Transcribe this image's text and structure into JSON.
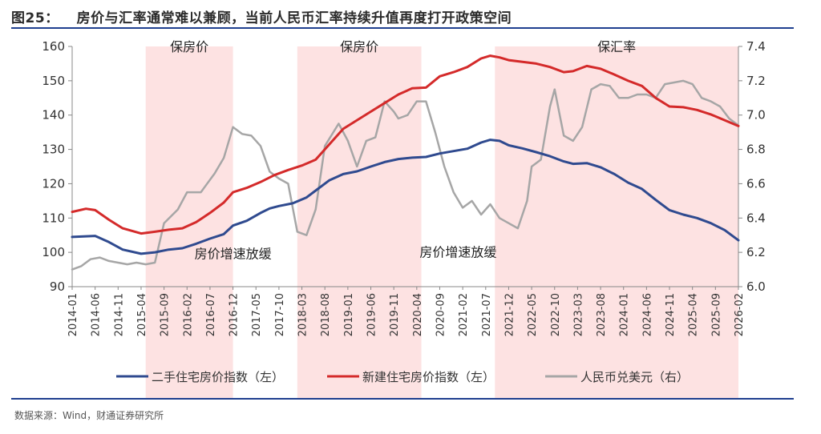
{
  "figure_label": "图25：",
  "title": "房价与汇率通常难以兼顾，当前人民币汇率持续升值再度打开政策空间",
  "source": "数据来源：Wind，财通证券研究所",
  "colors": {
    "secondhand": "#2f4a8f",
    "newhome": "#d42a2a",
    "fx": "#a6a6a6",
    "shade": "#fde2e2"
  },
  "chart_data": {
    "type": "line",
    "x_range": [
      "2014-01",
      "2026-02"
    ],
    "x_ticks": [
      "2014-01",
      "2014-06",
      "2014-11",
      "2015-04",
      "2015-09",
      "2016-02",
      "2016-07",
      "2016-12",
      "2017-05",
      "2017-10",
      "2018-03",
      "2018-08",
      "2019-01",
      "2019-06",
      "2019-11",
      "2020-04",
      "2020-09",
      "2021-02",
      "2021-07",
      "2021-12",
      "2022-05",
      "2022-10",
      "2023-03",
      "2023-08",
      "2024-01",
      "2024-06",
      "2024-11",
      "2025-04",
      "2025-09",
      "2026-02"
    ],
    "y_left": {
      "min": 90,
      "max": 160,
      "ticks": [
        90,
        100,
        110,
        120,
        130,
        140,
        150,
        160
      ]
    },
    "y_right": {
      "min": 6.0,
      "max": 7.4,
      "ticks": [
        "6.0",
        "6.2",
        "6.4",
        "6.6",
        "6.8",
        "7.0",
        "7.2",
        "7.4"
      ]
    },
    "shaded_periods": [
      {
        "start": "2015-05",
        "end": "2016-12",
        "label": "保房价",
        "label_pos": "top"
      },
      {
        "start": "2018-02",
        "end": "2020-05",
        "label": "保房价",
        "label_pos": "top"
      },
      {
        "start": "2021-09",
        "end": "2026-02",
        "label": "保汇率",
        "label_pos": "top"
      }
    ],
    "annotations": [
      {
        "text": "房价增速放缓",
        "at": "2016-12",
        "y_left": 102
      },
      {
        "text": "房价增速放缓",
        "at": "2021-01",
        "y_left": 102.5
      }
    ],
    "series": [
      {
        "name": "二手住宅房价指数（左）",
        "axis": "left",
        "color_key": "secondhand",
        "points": [
          [
            "2014-01",
            104.5
          ],
          [
            "2014-06",
            104.8
          ],
          [
            "2014-09",
            103.0
          ],
          [
            "2014-12",
            100.8
          ],
          [
            "2015-04",
            99.6
          ],
          [
            "2015-07",
            100.0
          ],
          [
            "2015-10",
            100.8
          ],
          [
            "2016-01",
            101.2
          ],
          [
            "2016-04",
            102.5
          ],
          [
            "2016-07",
            104.0
          ],
          [
            "2016-10",
            105.3
          ],
          [
            "2016-12",
            107.8
          ],
          [
            "2017-03",
            109.2
          ],
          [
            "2017-06",
            111.5
          ],
          [
            "2017-08",
            112.8
          ],
          [
            "2017-10",
            113.5
          ],
          [
            "2018-01",
            114.3
          ],
          [
            "2018-04",
            116.0
          ],
          [
            "2018-06",
            118.0
          ],
          [
            "2018-09",
            121.0
          ],
          [
            "2018-12",
            122.8
          ],
          [
            "2019-03",
            123.6
          ],
          [
            "2019-06",
            125.0
          ],
          [
            "2019-09",
            126.3
          ],
          [
            "2019-12",
            127.2
          ],
          [
            "2020-03",
            127.6
          ],
          [
            "2020-06",
            127.8
          ],
          [
            "2020-09",
            128.8
          ],
          [
            "2020-12",
            129.5
          ],
          [
            "2021-03",
            130.2
          ],
          [
            "2021-06",
            132.0
          ],
          [
            "2021-08",
            132.8
          ],
          [
            "2021-10",
            132.5
          ],
          [
            "2021-12",
            131.2
          ],
          [
            "2022-03",
            130.3
          ],
          [
            "2022-06",
            129.2
          ],
          [
            "2022-09",
            128.0
          ],
          [
            "2022-12",
            126.5
          ],
          [
            "2023-02",
            125.8
          ],
          [
            "2023-05",
            126.0
          ],
          [
            "2023-08",
            124.8
          ],
          [
            "2023-11",
            122.8
          ],
          [
            "2024-02",
            120.3
          ],
          [
            "2024-05",
            118.5
          ],
          [
            "2024-08",
            115.3
          ],
          [
            "2024-11",
            112.3
          ],
          [
            "2025-02",
            111.0
          ],
          [
            "2025-05",
            110.0
          ],
          [
            "2025-08",
            108.5
          ],
          [
            "2025-11",
            106.5
          ],
          [
            "2026-02",
            103.5
          ]
        ]
      },
      {
        "name": "新建住宅房价指数（左）",
        "axis": "left",
        "color_key": "newhome",
        "points": [
          [
            "2014-01",
            111.8
          ],
          [
            "2014-04",
            112.7
          ],
          [
            "2014-06",
            112.3
          ],
          [
            "2014-09",
            109.5
          ],
          [
            "2014-12",
            107.0
          ],
          [
            "2015-04",
            105.5
          ],
          [
            "2015-07",
            106.0
          ],
          [
            "2015-10",
            106.6
          ],
          [
            "2016-01",
            107.0
          ],
          [
            "2016-04",
            108.8
          ],
          [
            "2016-07",
            111.5
          ],
          [
            "2016-10",
            114.5
          ],
          [
            "2016-12",
            117.5
          ],
          [
            "2017-03",
            118.8
          ],
          [
            "2017-06",
            120.5
          ],
          [
            "2017-09",
            122.5
          ],
          [
            "2017-12",
            124.0
          ],
          [
            "2018-03",
            125.3
          ],
          [
            "2018-06",
            127.0
          ],
          [
            "2018-09",
            131.5
          ],
          [
            "2018-12",
            136.0
          ],
          [
            "2019-03",
            138.5
          ],
          [
            "2019-06",
            141.0
          ],
          [
            "2019-09",
            143.5
          ],
          [
            "2019-12",
            146.0
          ],
          [
            "2020-03",
            147.8
          ],
          [
            "2020-06",
            148.0
          ],
          [
            "2020-09",
            151.3
          ],
          [
            "2020-12",
            152.5
          ],
          [
            "2021-03",
            154.0
          ],
          [
            "2021-06",
            156.5
          ],
          [
            "2021-08",
            157.3
          ],
          [
            "2021-10",
            156.8
          ],
          [
            "2021-12",
            156.0
          ],
          [
            "2022-03",
            155.5
          ],
          [
            "2022-06",
            155.0
          ],
          [
            "2022-09",
            154.0
          ],
          [
            "2022-12",
            152.5
          ],
          [
            "2023-02",
            152.8
          ],
          [
            "2023-05",
            154.3
          ],
          [
            "2023-08",
            153.5
          ],
          [
            "2023-11",
            151.8
          ],
          [
            "2024-02",
            150.0
          ],
          [
            "2024-05",
            148.5
          ],
          [
            "2024-08",
            145.0
          ],
          [
            "2024-11",
            142.5
          ],
          [
            "2025-02",
            142.3
          ],
          [
            "2025-05",
            141.5
          ],
          [
            "2025-08",
            140.2
          ],
          [
            "2025-11",
            138.5
          ],
          [
            "2026-02",
            136.8
          ]
        ]
      },
      {
        "name": "人民币兑美元（右）",
        "axis": "right",
        "color_key": "fx",
        "points": [
          [
            "2014-01",
            6.1
          ],
          [
            "2014-03",
            6.12
          ],
          [
            "2014-05",
            6.16
          ],
          [
            "2014-07",
            6.17
          ],
          [
            "2014-09",
            6.15
          ],
          [
            "2014-11",
            6.14
          ],
          [
            "2015-01",
            6.13
          ],
          [
            "2015-03",
            6.14
          ],
          [
            "2015-05",
            6.13
          ],
          [
            "2015-07",
            6.14
          ],
          [
            "2015-09",
            6.37
          ],
          [
            "2015-12",
            6.45
          ],
          [
            "2016-02",
            6.55
          ],
          [
            "2016-05",
            6.55
          ],
          [
            "2016-08",
            6.66
          ],
          [
            "2016-10",
            6.75
          ],
          [
            "2016-12",
            6.93
          ],
          [
            "2017-02",
            6.89
          ],
          [
            "2017-04",
            6.88
          ],
          [
            "2017-06",
            6.82
          ],
          [
            "2017-08",
            6.67
          ],
          [
            "2017-10",
            6.63
          ],
          [
            "2017-12",
            6.6
          ],
          [
            "2018-02",
            6.32
          ],
          [
            "2018-04",
            6.3
          ],
          [
            "2018-06",
            6.45
          ],
          [
            "2018-08",
            6.82
          ],
          [
            "2018-11",
            6.95
          ],
          [
            "2019-01",
            6.85
          ],
          [
            "2019-03",
            6.7
          ],
          [
            "2019-05",
            6.85
          ],
          [
            "2019-07",
            6.87
          ],
          [
            "2019-09",
            7.08
          ],
          [
            "2019-11",
            7.02
          ],
          [
            "2019-12",
            6.98
          ],
          [
            "2020-02",
            7.0
          ],
          [
            "2020-04",
            7.08
          ],
          [
            "2020-06",
            7.08
          ],
          [
            "2020-08",
            6.9
          ],
          [
            "2020-10",
            6.7
          ],
          [
            "2020-12",
            6.55
          ],
          [
            "2021-02",
            6.46
          ],
          [
            "2021-04",
            6.5
          ],
          [
            "2021-06",
            6.42
          ],
          [
            "2021-08",
            6.48
          ],
          [
            "2021-10",
            6.4
          ],
          [
            "2021-12",
            6.37
          ],
          [
            "2022-02",
            6.34
          ],
          [
            "2022-04",
            6.5
          ],
          [
            "2022-05",
            6.7
          ],
          [
            "2022-07",
            6.74
          ],
          [
            "2022-09",
            7.05
          ],
          [
            "2022-10",
            7.15
          ],
          [
            "2022-12",
            6.88
          ],
          [
            "2023-02",
            6.85
          ],
          [
            "2023-04",
            6.93
          ],
          [
            "2023-06",
            7.15
          ],
          [
            "2023-08",
            7.18
          ],
          [
            "2023-10",
            7.17
          ],
          [
            "2023-12",
            7.1
          ],
          [
            "2024-02",
            7.1
          ],
          [
            "2024-04",
            7.12
          ],
          [
            "2024-06",
            7.12
          ],
          [
            "2024-08",
            7.1
          ],
          [
            "2024-10",
            7.18
          ],
          [
            "2024-12",
            7.19
          ],
          [
            "2025-02",
            7.2
          ],
          [
            "2025-04",
            7.18
          ],
          [
            "2025-06",
            7.1
          ],
          [
            "2025-08",
            7.08
          ],
          [
            "2025-10",
            7.05
          ],
          [
            "2025-12",
            6.98
          ],
          [
            "2026-02",
            6.94
          ]
        ]
      }
    ]
  }
}
